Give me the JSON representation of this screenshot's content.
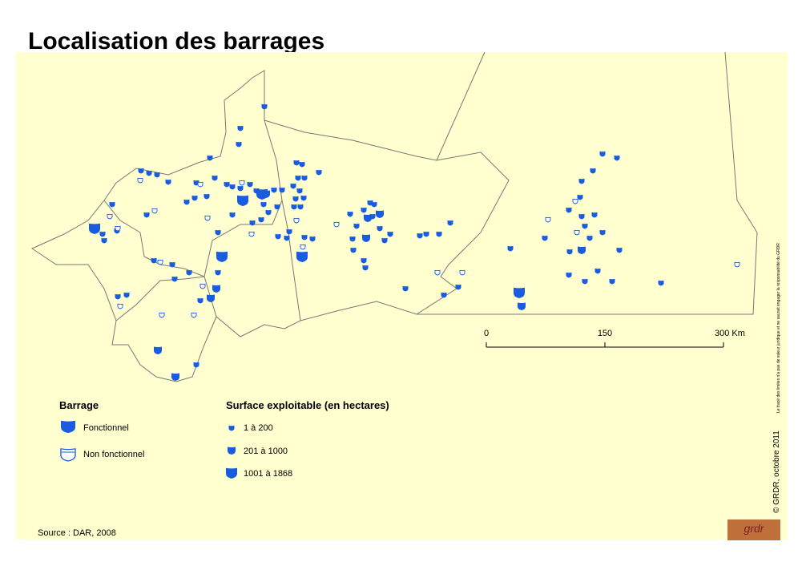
{
  "title": "Localisation des barrages",
  "scale": {
    "labels": [
      "0",
      "150",
      "300 Km"
    ]
  },
  "legend": {
    "barrage": {
      "title": "Barrage",
      "items": [
        "Fonctionnel",
        "Non fonctionnel"
      ]
    },
    "surface": {
      "title": "Surface exploitable (en hectares)",
      "items": [
        "1 à 200",
        "201 à 1000",
        "1001 à 1868"
      ]
    }
  },
  "source": "Source : DAR, 2008",
  "credit": "© GRDR, octobre 2011",
  "disclaimer": "Le tracé des limites n'a pas de valeur juridique et ne saurait engager la responsabilité du GRDR",
  "logo": "grdr"
}
